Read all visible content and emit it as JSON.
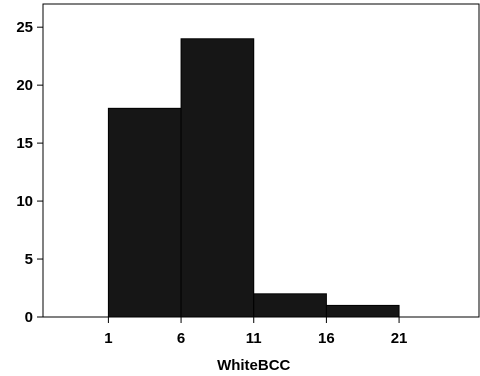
{
  "chart_data": {
    "type": "bar",
    "subtype": "histogram",
    "title": "",
    "xlabel": "WhiteBCC",
    "ylabel": "",
    "bins": [
      {
        "start": 1,
        "end": 6,
        "count": 18
      },
      {
        "start": 6,
        "end": 11,
        "count": 24
      },
      {
        "start": 11,
        "end": 16,
        "count": 2
      },
      {
        "start": 16,
        "end": 21,
        "count": 1
      }
    ],
    "x_ticks": [
      1,
      6,
      11,
      16,
      21
    ],
    "x_tick_labels": [
      "1",
      "6",
      "11",
      "16",
      "21"
    ],
    "y_ticks": [
      0,
      5,
      10,
      15,
      20,
      25
    ],
    "y_tick_labels": [
      "0",
      "5",
      "10",
      "15",
      "20",
      "25"
    ],
    "xlim": [
      -3.5,
      26.5
    ],
    "ylim": [
      0,
      27
    ],
    "grid": false,
    "legend": "none",
    "colors": {
      "bar_fill": "#161616",
      "bar_stroke": "#000000",
      "axis": "#000000",
      "background": "#ffffff"
    }
  }
}
